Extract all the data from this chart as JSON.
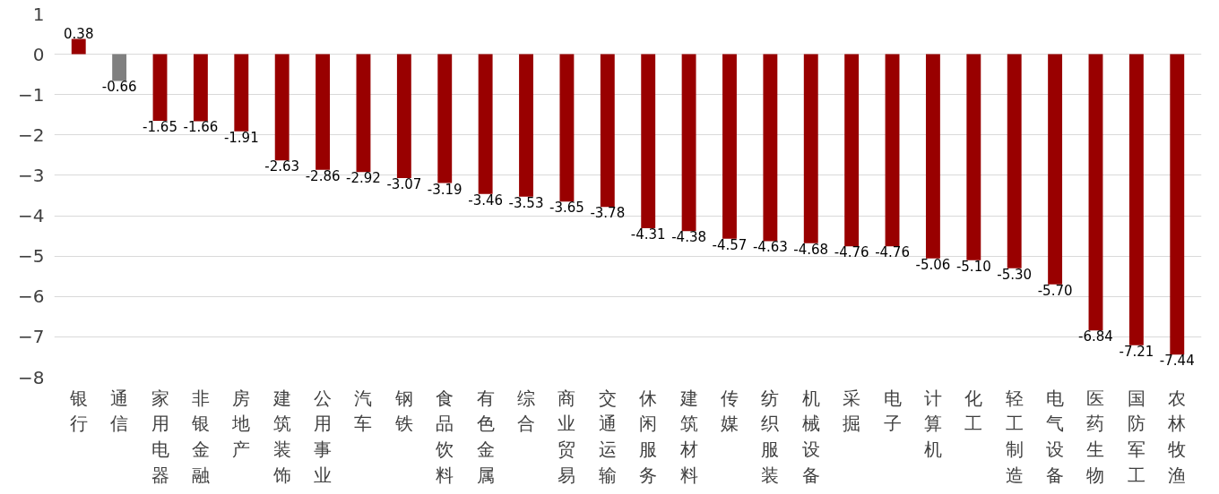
{
  "chart_data": {
    "type": "bar",
    "categories": [
      "银行",
      "通信",
      "家用电器",
      "非银金融",
      "房地产",
      "建筑装饰",
      "公用事业",
      "汽车",
      "钢铁",
      "食品饮料",
      "有色金属",
      "综合",
      "商业贸易",
      "交通运输",
      "休闲服务",
      "建筑材料",
      "传媒",
      "纺织服装",
      "机械设备",
      "采掘",
      "电子",
      "计算机",
      "化工",
      "轻工制造",
      "电气设备",
      "医药生物",
      "国防军工",
      "农林牧渔"
    ],
    "values": [
      0.38,
      -0.66,
      -1.65,
      -1.66,
      -1.91,
      -2.63,
      -2.86,
      -2.92,
      -3.07,
      -3.19,
      -3.46,
      -3.53,
      -3.65,
      -3.78,
      -4.31,
      -4.38,
      -4.57,
      -4.63,
      -4.68,
      -4.76,
      -4.76,
      -5.06,
      -5.1,
      -5.3,
      -5.7,
      -6.84,
      -7.21,
      -7.44
    ],
    "colors": [
      "#990000",
      "#808080",
      "#990000",
      "#990000",
      "#990000",
      "#990000",
      "#990000",
      "#990000",
      "#990000",
      "#990000",
      "#990000",
      "#990000",
      "#990000",
      "#990000",
      "#990000",
      "#990000",
      "#990000",
      "#990000",
      "#990000",
      "#990000",
      "#990000",
      "#990000",
      "#990000",
      "#990000",
      "#990000",
      "#990000",
      "#990000",
      "#990000"
    ],
    "value_labels": [
      "0.38",
      "-0.66",
      "-1.65",
      "-1.66",
      "-1.91",
      "-2.63",
      "-2.86",
      "-2.92",
      "-3.07",
      "-3.19",
      "-3.46",
      "-3.53",
      "-3.65",
      "-3.78",
      "-4.31",
      "-4.38",
      "-4.57",
      "-4.63",
      "-4.68",
      "-4.76",
      "-4.76",
      "-5.06",
      "-5.10",
      "-5.30",
      "-5.70",
      "-6.84",
      "-7.21",
      "-7.44"
    ],
    "ylim": [
      -8,
      1
    ],
    "yticks": [
      -8,
      -7,
      -6,
      -5,
      -4,
      -3,
      -2,
      -1,
      0,
      1
    ],
    "grid": "y"
  }
}
